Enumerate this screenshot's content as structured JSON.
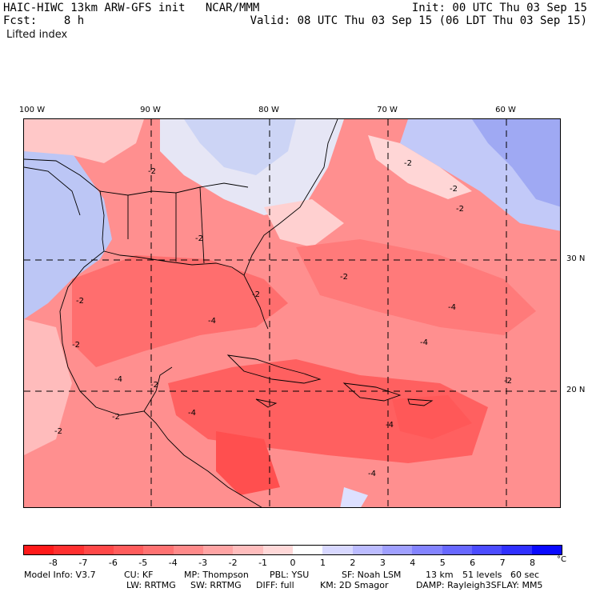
{
  "header": {
    "title": "HAIC-HIWC 13km ARW-GFS init   NCAR/MMM",
    "forecast": "Fcst:    8 h",
    "init": "Init: 00 UTC Thu 03 Sep 15",
    "valid": "Valid: 08 UTC Thu 03 Sep 15 (06 LDT Thu 03 Sep 15)",
    "variable": "Lifted index"
  },
  "map": {
    "longitude_labels": [
      "100 W",
      "90 W",
      "80 W",
      "70 W",
      "60 W"
    ],
    "latitude_labels": [
      "30 N",
      "20 N"
    ],
    "contour_labels": [
      "-2",
      "-2",
      "-2",
      "-2",
      "-2",
      "-2",
      "-4",
      "-4",
      "-4",
      "-4",
      "-4",
      "-2",
      "-2",
      "-4",
      "-2",
      "-2",
      "-4",
      "-2",
      "-2",
      "-2"
    ]
  },
  "colorbar": {
    "unit": "°C",
    "labels": [
      "-8",
      "-7",
      "-6",
      "-5",
      "-4",
      "-3",
      "-2",
      "-1",
      "0",
      "1",
      "2",
      "3",
      "4",
      "5",
      "6",
      "7",
      "8"
    ],
    "colors": [
      "#ff1a1a",
      "#ff3030",
      "#ff4848",
      "#ff5c5c",
      "#ff7272",
      "#ff8a8a",
      "#ffa4a4",
      "#ffbdbd",
      "#ffd8d8",
      "#ffffff",
      "#d8d8ff",
      "#bcbcff",
      "#a0a0ff",
      "#8484ff",
      "#6868ff",
      "#4c4cff",
      "#3030ff",
      "#0a0aff"
    ]
  },
  "footer": {
    "line1": [
      "Model Info: V3.7",
      "CU: KF",
      "MP: Thompson",
      "PBL: YSU",
      "SF: Noah LSM",
      "13 km",
      "51 levels",
      "60 sec"
    ],
    "line2": [
      "LW: RRTMG",
      "SW: RRTMG",
      "DIFF: full",
      "KM: 2D Smagor",
      "DAMP: Rayleigh3",
      "SFLAY: MM5"
    ]
  }
}
